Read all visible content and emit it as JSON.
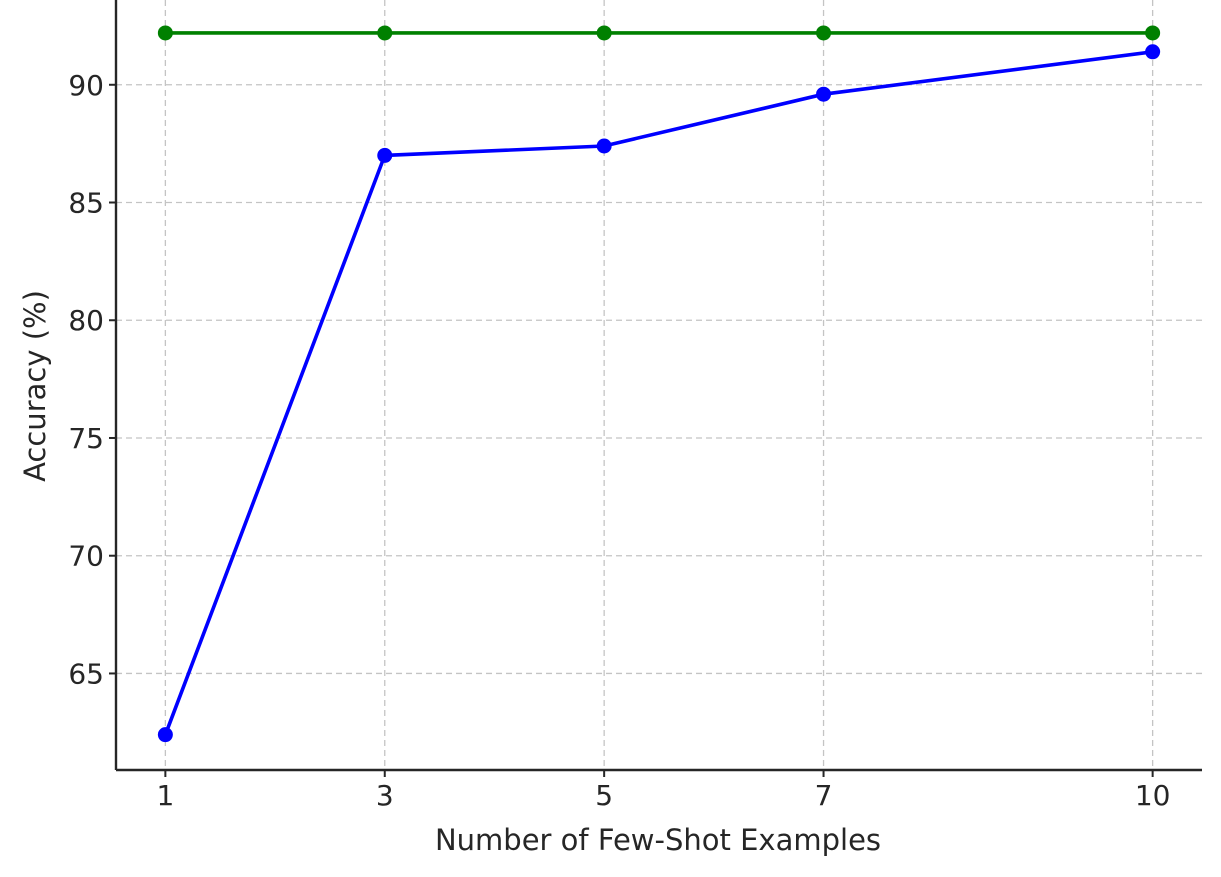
{
  "chart_data": {
    "type": "line",
    "title": "",
    "xlabel": "Number of Few-Shot Examples",
    "ylabel": "Accuracy (%)",
    "x": [
      1,
      3,
      5,
      7,
      10
    ],
    "x_ticks": [
      1,
      3,
      5,
      7,
      10
    ],
    "y_ticks": [
      65,
      70,
      75,
      80,
      85,
      90
    ],
    "xlim": [
      0.55,
      10.45
    ],
    "ylim": [
      60.9,
      93.6
    ],
    "grid": true,
    "legend": "none",
    "series": [
      {
        "color": "#008000",
        "marker": "circle",
        "values": [
          92.2,
          92.2,
          92.2,
          92.2,
          92.2
        ]
      },
      {
        "color": "#0000ff",
        "marker": "circle",
        "values": [
          62.4,
          87.0,
          87.4,
          89.6,
          91.4
        ]
      }
    ]
  }
}
